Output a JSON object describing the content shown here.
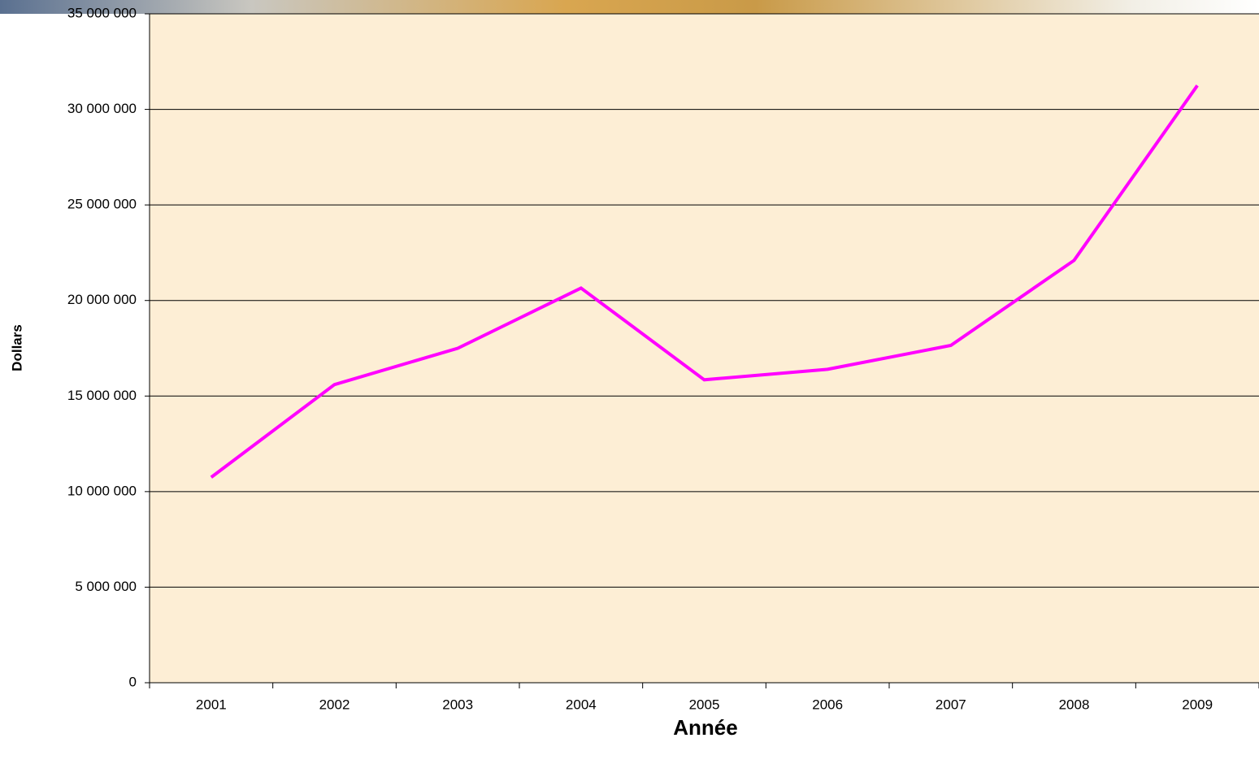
{
  "chart_data": {
    "type": "line",
    "xlabel": "Année",
    "ylabel": "Dollars",
    "categories": [
      "2001",
      "2002",
      "2003",
      "2004",
      "2005",
      "2006",
      "2007",
      "2008",
      "2009"
    ],
    "series": [
      {
        "name": "Dollars",
        "color": "#ff00ff",
        "values": [
          10750000,
          15600000,
          17500000,
          20650000,
          15850000,
          16400000,
          17650000,
          22100000,
          31250000
        ]
      }
    ],
    "ylim": [
      0,
      35000000
    ],
    "yticks": [
      0,
      {
        "value": 5000000,
        "label": "5 000 000"
      },
      {
        "value": 10000000,
        "label": "10 000 000"
      },
      {
        "value": 15000000,
        "label": "15 000 000"
      },
      {
        "value": 20000000,
        "label": "20 000 000"
      },
      {
        "value": 25000000,
        "label": "25 000 000"
      },
      {
        "value": 30000000,
        "label": "30 000 000"
      },
      {
        "value": 35000000,
        "label": "35 000 000"
      }
    ],
    "grid": true,
    "legend": false
  }
}
